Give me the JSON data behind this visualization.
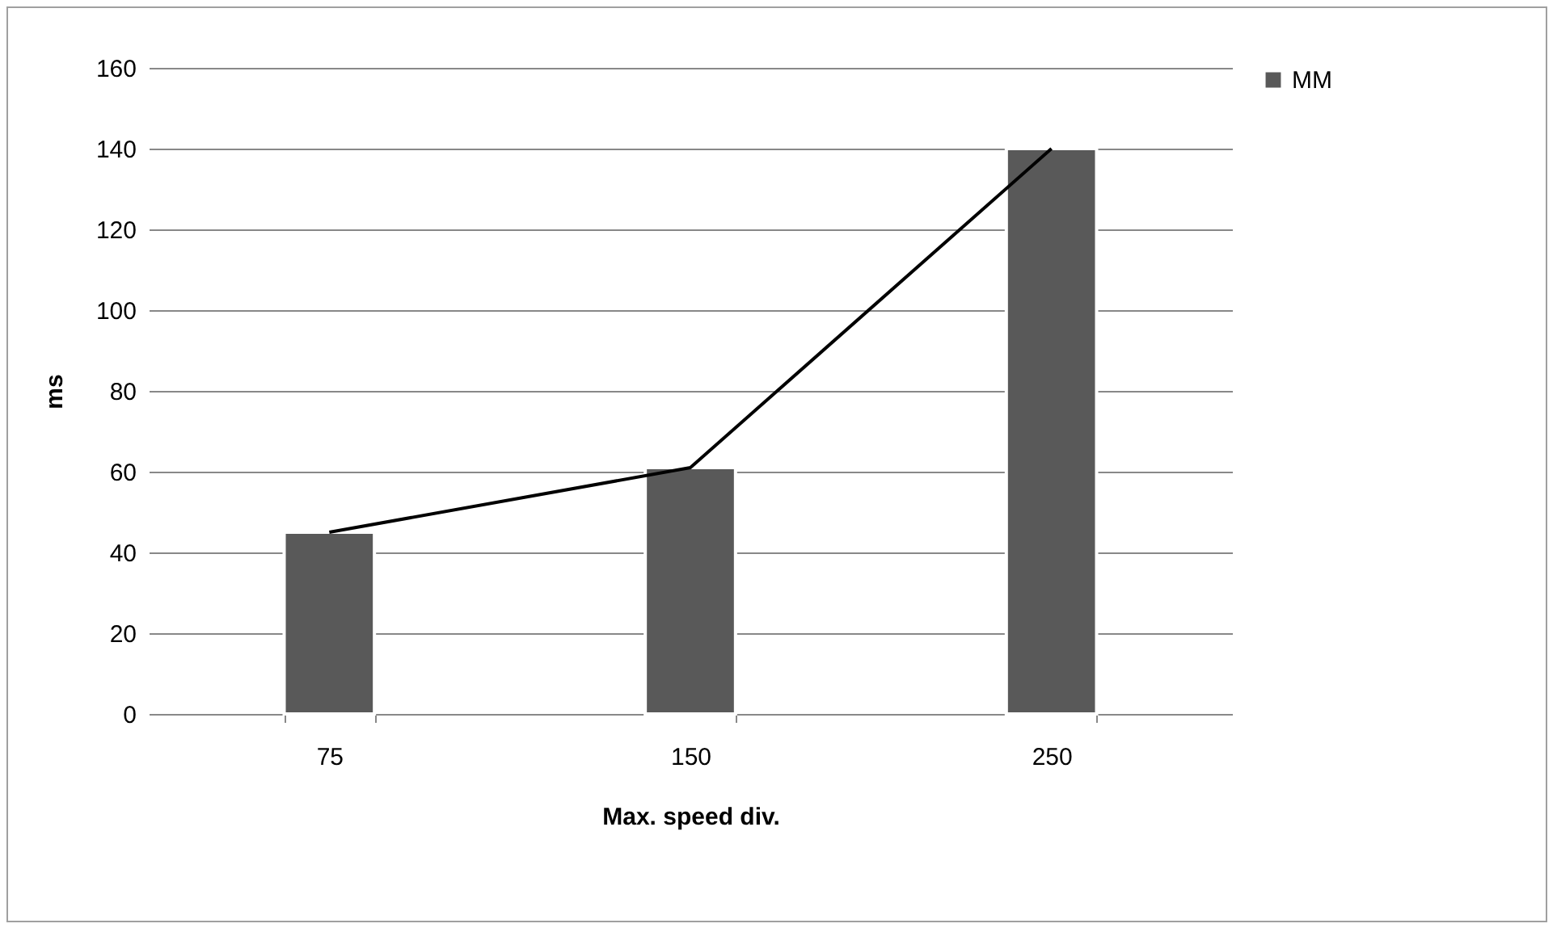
{
  "chart_data": {
    "type": "bar",
    "xlabel": "Max. speed div.",
    "ylabel": "ms",
    "categories": [
      "75",
      "150",
      "250"
    ],
    "series": [
      {
        "name": "MM",
        "color": "#595959",
        "values": [
          45,
          61,
          140
        ]
      },
      {
        "type": "line",
        "color": "#000000",
        "values": [
          45,
          61,
          140
        ]
      }
    ],
    "ylim": [
      0,
      160
    ],
    "yticks": [
      0,
      20,
      40,
      60,
      80,
      100,
      120,
      140,
      160
    ],
    "grid": "y",
    "legend": "right"
  }
}
